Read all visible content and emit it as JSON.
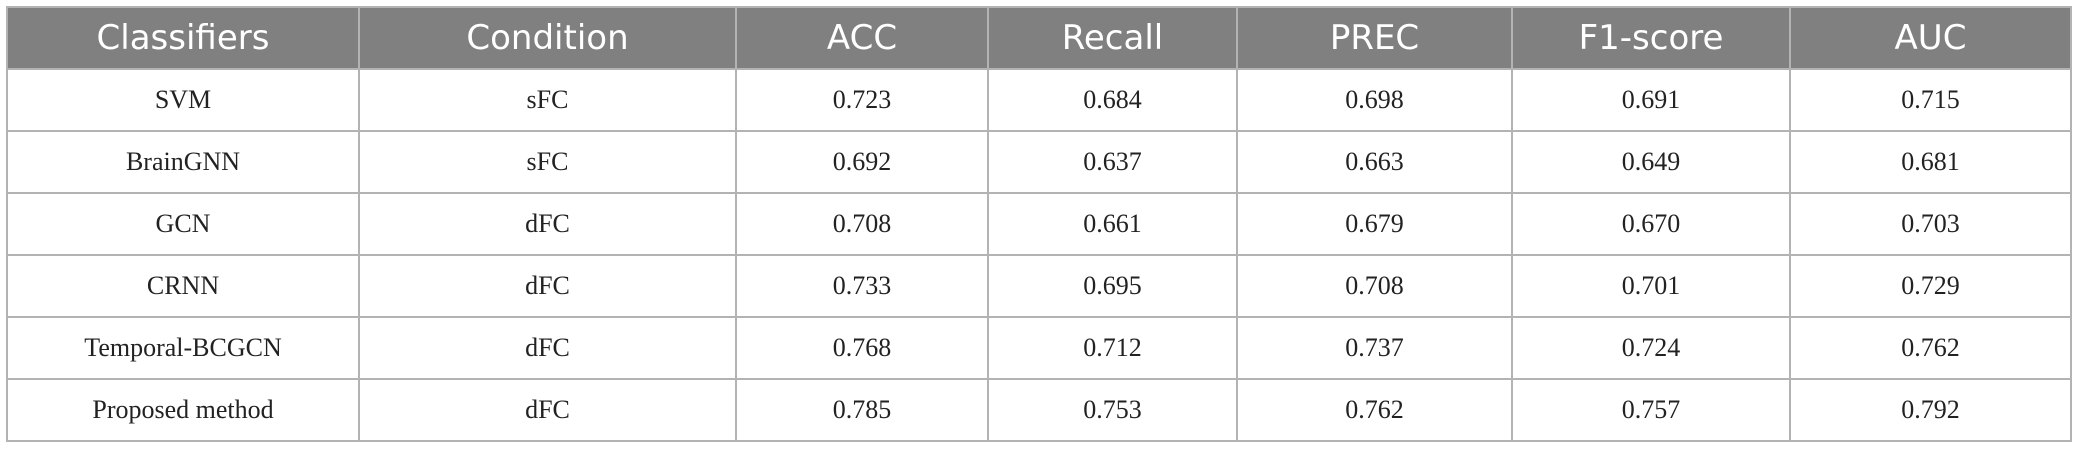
{
  "table": {
    "header": [
      "Classifiers",
      "Condition",
      "ACC",
      "Recall",
      "PREC",
      "F1-score",
      "AUC"
    ],
    "rows": [
      [
        "SVM",
        "sFC",
        "0.723",
        "0.684",
        "0.698",
        "0.691",
        "0.715"
      ],
      [
        "BrainGNN",
        "sFC",
        "0.692",
        "0.637",
        "0.663",
        "0.649",
        "0.681"
      ],
      [
        "GCN",
        "dFC",
        "0.708",
        "0.661",
        "0.679",
        "0.670",
        "0.703"
      ],
      [
        "CRNN",
        "dFC",
        "0.733",
        "0.695",
        "0.708",
        "0.701",
        "0.729"
      ],
      [
        "Temporal-BCGCN",
        "dFC",
        "0.768",
        "0.712",
        "0.737",
        "0.724",
        "0.762"
      ],
      [
        "Proposed method",
        "dFC",
        "0.785",
        "0.753",
        "0.762",
        "0.757",
        "0.792"
      ]
    ]
  }
}
